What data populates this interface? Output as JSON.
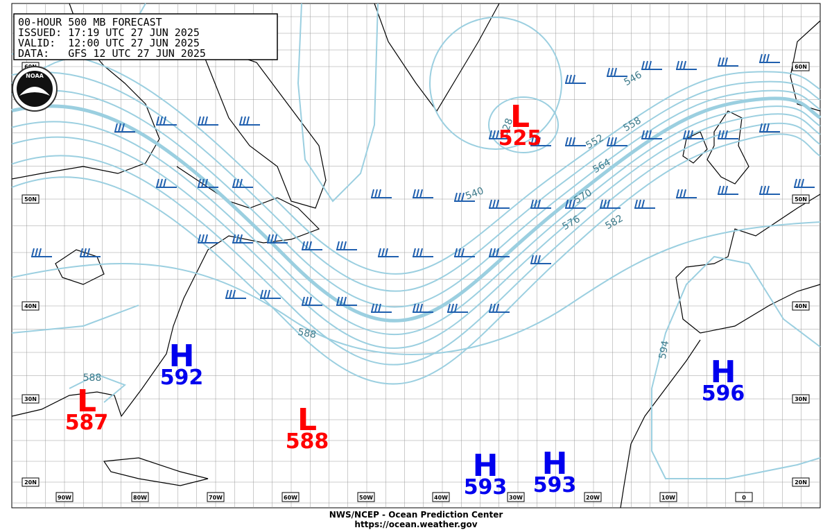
{
  "header": {
    "lines": [
      "00-HOUR 500 MB FORECAST",
      "ISSUED: 17:19 UTC 27 JUN 2025",
      "VALID:  12:00 UTC 27 JUN 2025",
      "DATA:   GFS 12 UTC 27 JUN 2025"
    ]
  },
  "logo": "NOAA",
  "centers": [
    {
      "type": "L",
      "value": "525"
    },
    {
      "type": "L",
      "value": "587"
    },
    {
      "type": "L",
      "value": "588"
    },
    {
      "type": "H",
      "value": "592"
    },
    {
      "type": "H",
      "value": "596"
    },
    {
      "type": "H",
      "value": "593"
    },
    {
      "type": "H",
      "value": "593"
    }
  ],
  "contour_labels": [
    "540",
    "546",
    "552",
    "558",
    "564",
    "570",
    "576",
    "582",
    "588",
    "588",
    "594",
    "528"
  ],
  "lat_labels": [
    "60N",
    "50N",
    "40N",
    "30N",
    "20N"
  ],
  "lon_labels": [
    "90W",
    "80W",
    "70W",
    "60W",
    "50W",
    "40W",
    "30W",
    "20W",
    "10W",
    "0"
  ],
  "footer": [
    "NWS/NCEP - Ocean Prediction Center",
    "https://ocean.weather.gov"
  ]
}
